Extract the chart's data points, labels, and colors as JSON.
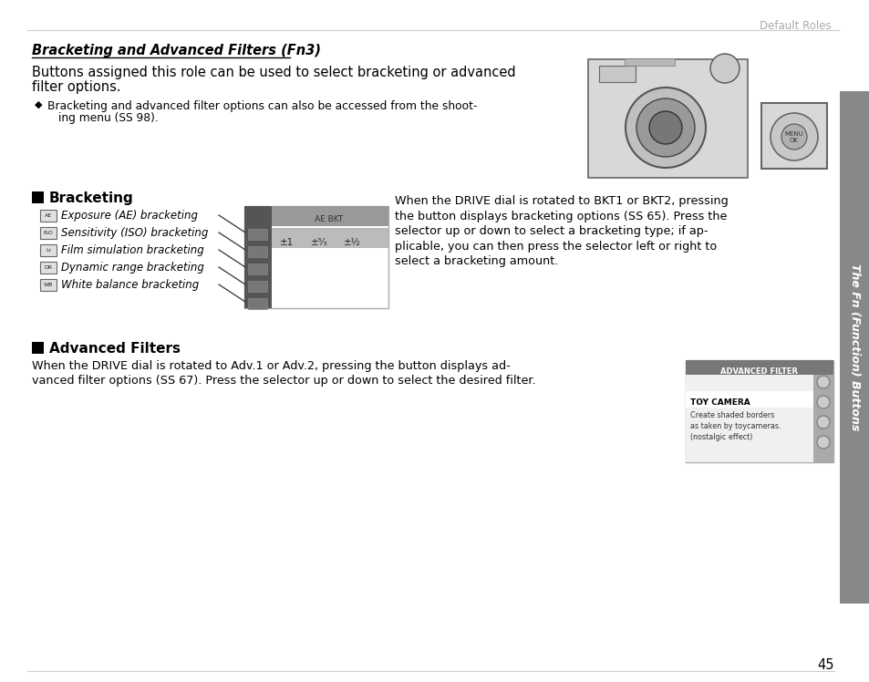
{
  "page_num": "45",
  "header_text": "Default Roles",
  "section_title": "Bracketing and Advanced Filters (Fn3)",
  "intro_line1": "Buttons assigned this role can be used to select bracketing or advanced",
  "intro_line2": "filter options.",
  "bullet_line1": "Bracketing and advanced filter options can also be accessed from the shoot-",
  "bullet_line2": "ing menu (ЅЅ 98).",
  "bracketing_header": "Bracketing",
  "bracketing_items": [
    "Exposure (AE) bracketing",
    "Sensitivity (ISO) bracketing",
    "Film simulation bracketing",
    "Dynamic range bracketing",
    "White balance bracketing"
  ],
  "item_icons": [
    "AE",
    "ISO",
    "Lr",
    "DR",
    "WB"
  ],
  "ae_bkt_label": "AE BKT",
  "ae_bkt_values": [
    "±1",
    "±⁵⁄₃",
    "±½"
  ],
  "desc_lines": [
    "When the DRIVE dial is rotated to BKT1 or BKT2, pressing",
    "the button displays bracketing options (ЅЅ 65). Press the",
    "selector up or down to select a bracketing type; if ap-",
    "plicable, you can then press the selector left or right to",
    "select a bracketing amount."
  ],
  "adv_filters_header": "Advanced Filters",
  "adv_desc_line1": "When the DRIVE dial is rotated to Adv.1 or Adv.2, pressing the button displays ad-",
  "adv_desc_line2": "vanced filter options (ЅЅ 67). Press the selector up or down to select the desired filter.",
  "adv_filter_title": "ADVANCED FILTER",
  "toy_camera_title": "TOY CAMERA",
  "toy_camera_desc": [
    "Create shaded borders",
    "as taken by toycameras.",
    "(nostalgic effect)"
  ],
  "sidebar_text": "The Fn (Function) Buttons",
  "bg_color": "#ffffff",
  "text_color": "#000000",
  "header_color": "#999999",
  "sidebar_bg": "#888888",
  "dark_panel_color": "#555555",
  "gray_header_color": "#999999",
  "highlight_row_color": "#bbbbbb"
}
